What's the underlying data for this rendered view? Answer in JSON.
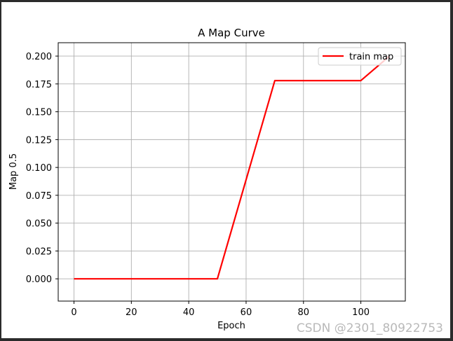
{
  "chart_data": {
    "type": "line",
    "title": "A Map Curve",
    "xlabel": "Epoch",
    "ylabel": "Map 0.5",
    "xlim": [
      -5.5,
      115.5
    ],
    "ylim": [
      -0.02,
      0.212
    ],
    "xticks": [
      0,
      20,
      40,
      60,
      80,
      100
    ],
    "yticks": [
      0.0,
      0.025,
      0.05,
      0.075,
      0.1,
      0.125,
      0.15,
      0.175,
      0.2
    ],
    "grid": true,
    "legend_position": "top-right",
    "series": [
      {
        "name": "train map",
        "color": "#ff0000",
        "x": [
          0,
          50,
          70,
          100,
          110
        ],
        "y": [
          0.0,
          0.0,
          0.178,
          0.178,
          0.2
        ]
      }
    ]
  },
  "watermark": "CSDN @2301_80922753"
}
